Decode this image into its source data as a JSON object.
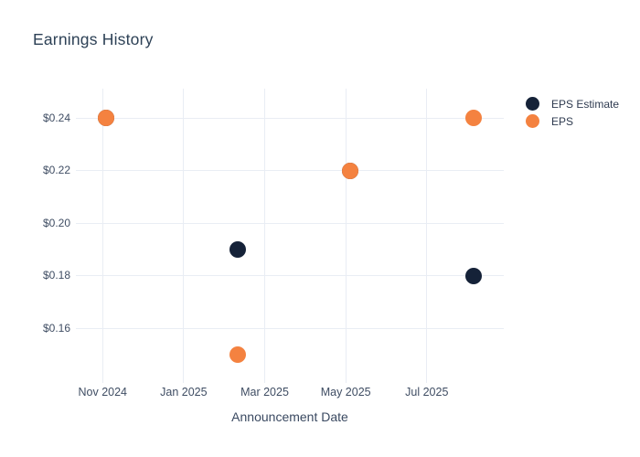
{
  "chart": {
    "title": "Earnings History",
    "xlabel": "Announcement Date"
  },
  "legend": {
    "items": [
      {
        "label": "EPS Estimate",
        "color": "#152238",
        "icon": "circle-marker-icon"
      },
      {
        "label": "EPS",
        "color": "#f48240",
        "icon": "circle-marker-icon"
      }
    ]
  },
  "colors": {
    "background": "#ffffff",
    "gridline": "#e9edf4",
    "title_text": "#2d4156",
    "tick_text": "#3f4d63",
    "navy": "#152238",
    "orange": "#f48240"
  },
  "chart_data": {
    "type": "scatter",
    "title": "Earnings History",
    "xlabel": "Announcement Date",
    "ylabel": "",
    "grid": true,
    "legend_position": "outside-top-right",
    "x_axis": {
      "unit": "months since Nov 1 2024",
      "range_t": [
        -0.66,
        9.9
      ],
      "ticks": [
        {
          "label": "Nov 2024",
          "t": 0
        },
        {
          "label": "Jan 2025",
          "t": 2
        },
        {
          "label": "Mar 2025",
          "t": 4
        },
        {
          "label": "May 2025",
          "t": 6
        },
        {
          "label": "Jul 2025",
          "t": 8
        }
      ]
    },
    "y_axis": {
      "range": [
        0.1393,
        0.2513
      ],
      "ticks": [
        {
          "label": "$0.24",
          "value": 0.24
        },
        {
          "label": "$0.22",
          "value": 0.22
        },
        {
          "label": "$0.20",
          "value": 0.2
        },
        {
          "label": "$0.18",
          "value": 0.18
        },
        {
          "label": "$0.16",
          "value": 0.16
        }
      ]
    },
    "series": [
      {
        "name": "EPS Estimate",
        "color": "#152238",
        "marker_size": 18,
        "points": [
          {
            "approx_date": "early Nov 2024",
            "t": 0.09,
            "value": 0.24
          },
          {
            "approx_date": "mid Feb 2025",
            "t": 3.34,
            "value": 0.19
          },
          {
            "approx_date": "early May 2025",
            "t": 6.12,
            "value": 0.22
          },
          {
            "approx_date": "early Aug 2025",
            "t": 9.16,
            "value": 0.18
          }
        ]
      },
      {
        "name": "EPS",
        "color": "#f48240",
        "marker_size": 18,
        "points": [
          {
            "approx_date": "early Nov 2024",
            "t": 0.09,
            "value": 0.24
          },
          {
            "approx_date": "mid Feb 2025",
            "t": 3.34,
            "value": 0.15
          },
          {
            "approx_date": "early May 2025",
            "t": 6.12,
            "value": 0.22
          },
          {
            "approx_date": "early Aug 2025",
            "t": 9.16,
            "value": 0.24
          }
        ]
      }
    ]
  }
}
